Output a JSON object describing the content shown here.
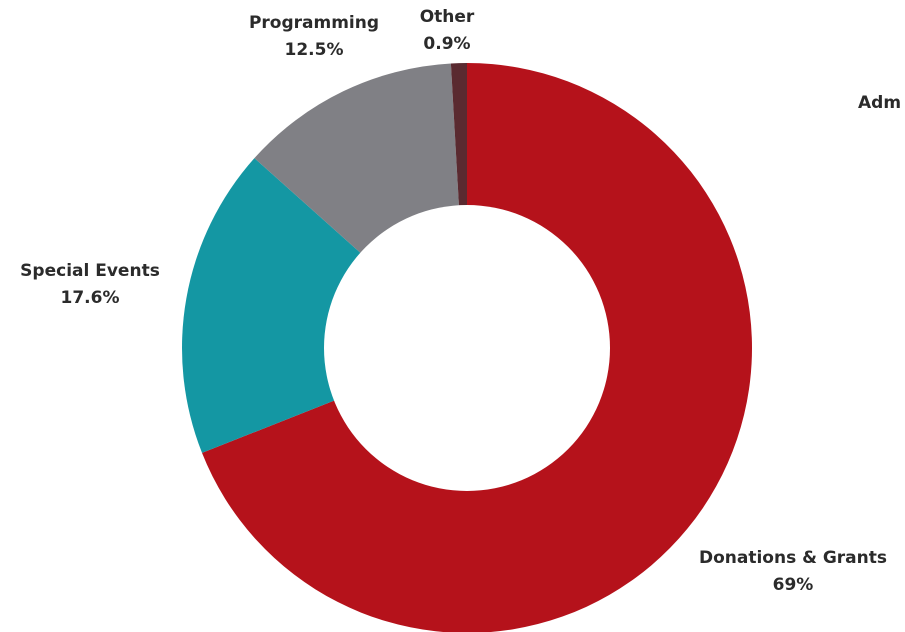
{
  "chart_data": {
    "type": "pie",
    "variant": "donut",
    "slices": [
      {
        "label": "Donations & Grants",
        "pct_label": "69%",
        "value": 69,
        "color": "#b5121b"
      },
      {
        "label": "Special Events",
        "pct_label": "17.6%",
        "value": 17.6,
        "color": "#1497a3"
      },
      {
        "label": "Programming",
        "pct_label": "12.5%",
        "value": 12.5,
        "color": "#808085"
      },
      {
        "label": "Other",
        "pct_label": "0.9%",
        "value": 0.9,
        "color": "#5a2a30"
      }
    ],
    "clipped_label": "Adm",
    "background": "#ffffff"
  }
}
